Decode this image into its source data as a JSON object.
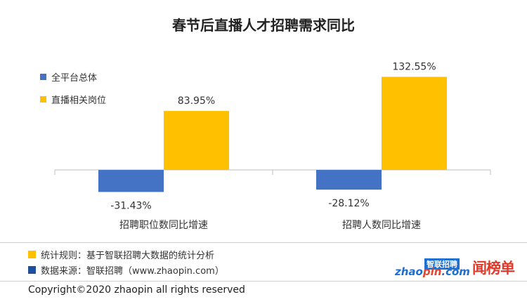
{
  "chart_data": {
    "type": "bar",
    "title": "春节后直播人才招聘需求同比",
    "categories": [
      "招聘职位数同比增速",
      "招聘人数同比增速"
    ],
    "series": [
      {
        "name": "全平台总体",
        "color": "#4472c4",
        "values": [
          -31.43,
          -28.12
        ],
        "labels": [
          "-31.43%",
          "-28.12%"
        ]
      },
      {
        "name": "直播相关岗位",
        "color": "#ffc000",
        "values": [
          83.95,
          132.55
        ],
        "labels": [
          "83.95%",
          "132.55%"
        ]
      }
    ],
    "ylim": [
      -40,
      145
    ],
    "grid": false,
    "legend": "top-left"
  },
  "footer": {
    "rule_text": "统计规则：基于智联招聘大数据的统计分析",
    "rule_color": "#ffc000",
    "source_text": "数据来源：智联招聘（www.zhaopin.com）",
    "source_color": "#1f4e9a",
    "copyright": "Copyright©2020 zhaopin all rights reserved"
  },
  "logos": {
    "zhaopin_cn": "智联招聘",
    "zhaopin_en_prefix": "zhao",
    "zhaopin_en_accent": "pin",
    "zhaopin_en_suffix": ".com",
    "wenbang": "闻榜单"
  }
}
